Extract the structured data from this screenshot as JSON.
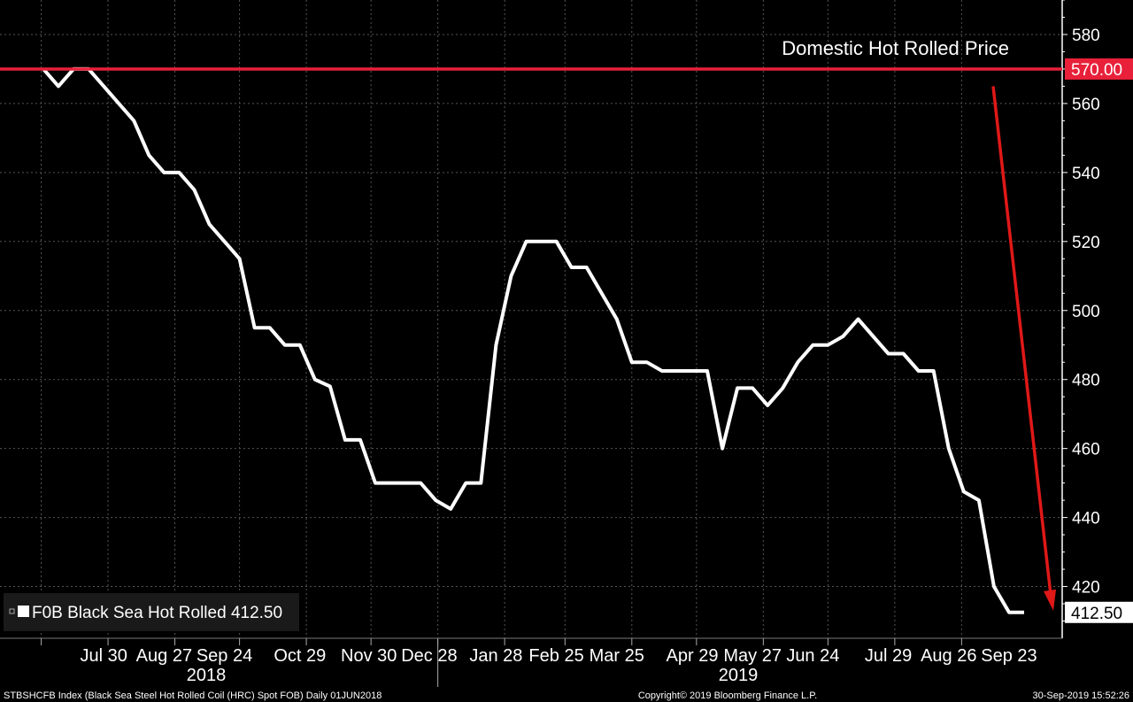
{
  "chart_data": {
    "type": "line",
    "x_ticks": [
      "Jul 30",
      "Aug 27",
      "Sep 24",
      "Oct 29",
      "Nov 30",
      "Dec 28",
      "Jan 28",
      "Feb 25",
      "Mar 25",
      "Apr 29",
      "May 27",
      "Jun 24",
      "Jul 29",
      "Aug 26",
      "Sep 23"
    ],
    "x_years": [
      "2018",
      "2019"
    ],
    "y_ticks": [
      420,
      440,
      460,
      480,
      500,
      520,
      540,
      560,
      580
    ],
    "ylim": [
      405,
      590
    ],
    "grid": true,
    "series": [
      {
        "name": "FOB Black Sea Hot Rolled",
        "legend_label": "F0B Black Sea Hot Rolled 412.50",
        "last_value_label": "412.50",
        "color": "#ffffff",
        "x": [
          "2018-07-02",
          "2018-07-09",
          "2018-07-16",
          "2018-07-23",
          "2018-07-30",
          "2018-08-06",
          "2018-08-13",
          "2018-08-20",
          "2018-08-27",
          "2018-09-03",
          "2018-09-10",
          "2018-09-17",
          "2018-09-24",
          "2018-10-01",
          "2018-10-08",
          "2018-10-15",
          "2018-10-22",
          "2018-10-29",
          "2018-11-05",
          "2018-11-12",
          "2018-11-19",
          "2018-11-26",
          "2018-12-03",
          "2018-12-10",
          "2018-12-17",
          "2018-12-24",
          "2018-12-31",
          "2019-01-07",
          "2019-01-14",
          "2019-01-21",
          "2019-01-28",
          "2019-02-04",
          "2019-02-11",
          "2019-02-18",
          "2019-02-25",
          "2019-03-04",
          "2019-03-11",
          "2019-03-18",
          "2019-03-25",
          "2019-04-01",
          "2019-04-08",
          "2019-04-15",
          "2019-04-22",
          "2019-04-29",
          "2019-05-06",
          "2019-05-13",
          "2019-05-20",
          "2019-05-27",
          "2019-06-03",
          "2019-06-10",
          "2019-06-17",
          "2019-06-24",
          "2019-07-01",
          "2019-07-08",
          "2019-07-15",
          "2019-07-22",
          "2019-07-29",
          "2019-08-05",
          "2019-08-12",
          "2019-08-19",
          "2019-08-26",
          "2019-09-02",
          "2019-09-09",
          "2019-09-16",
          "2019-09-23",
          "2019-09-30"
        ],
        "values": [
          570,
          565,
          570,
          570,
          565,
          560,
          555,
          545,
          540,
          540,
          535,
          525,
          520,
          515,
          495,
          495,
          490,
          490,
          480,
          478,
          462.5,
          462.5,
          450,
          450,
          450,
          450,
          445,
          442.5,
          450,
          450,
          490,
          510,
          520,
          520,
          520,
          512.5,
          512.5,
          505,
          497.5,
          485,
          485,
          482.5,
          482.5,
          482.5,
          482.5,
          460,
          477.5,
          477.5,
          472.5,
          477.5,
          485,
          490,
          490,
          492.5,
          497.5,
          492.5,
          487.5,
          487.5,
          482.5,
          482.5,
          460,
          447.5,
          445,
          420,
          412.5,
          412.5
        ]
      },
      {
        "name": "Domestic Hot Rolled Price",
        "value": 570.0,
        "value_label": "570.00",
        "color": "#e8203a",
        "style": "horizontal-line"
      }
    ],
    "annotations": [
      {
        "text": "Domestic Hot Rolled Price"
      },
      {
        "type": "arrow",
        "color": "#e01818",
        "from_value": 565,
        "to_value": 413
      }
    ]
  },
  "footer": {
    "left": "STBSHCFB Index (Black Sea Steel Hot Rolled Coil (HRC) Spot FOB)  Daily 01JUN2018",
    "center": "Copyright© 2019 Bloomberg Finance L.P.",
    "right": "30-Sep-2019 15:52:26"
  }
}
